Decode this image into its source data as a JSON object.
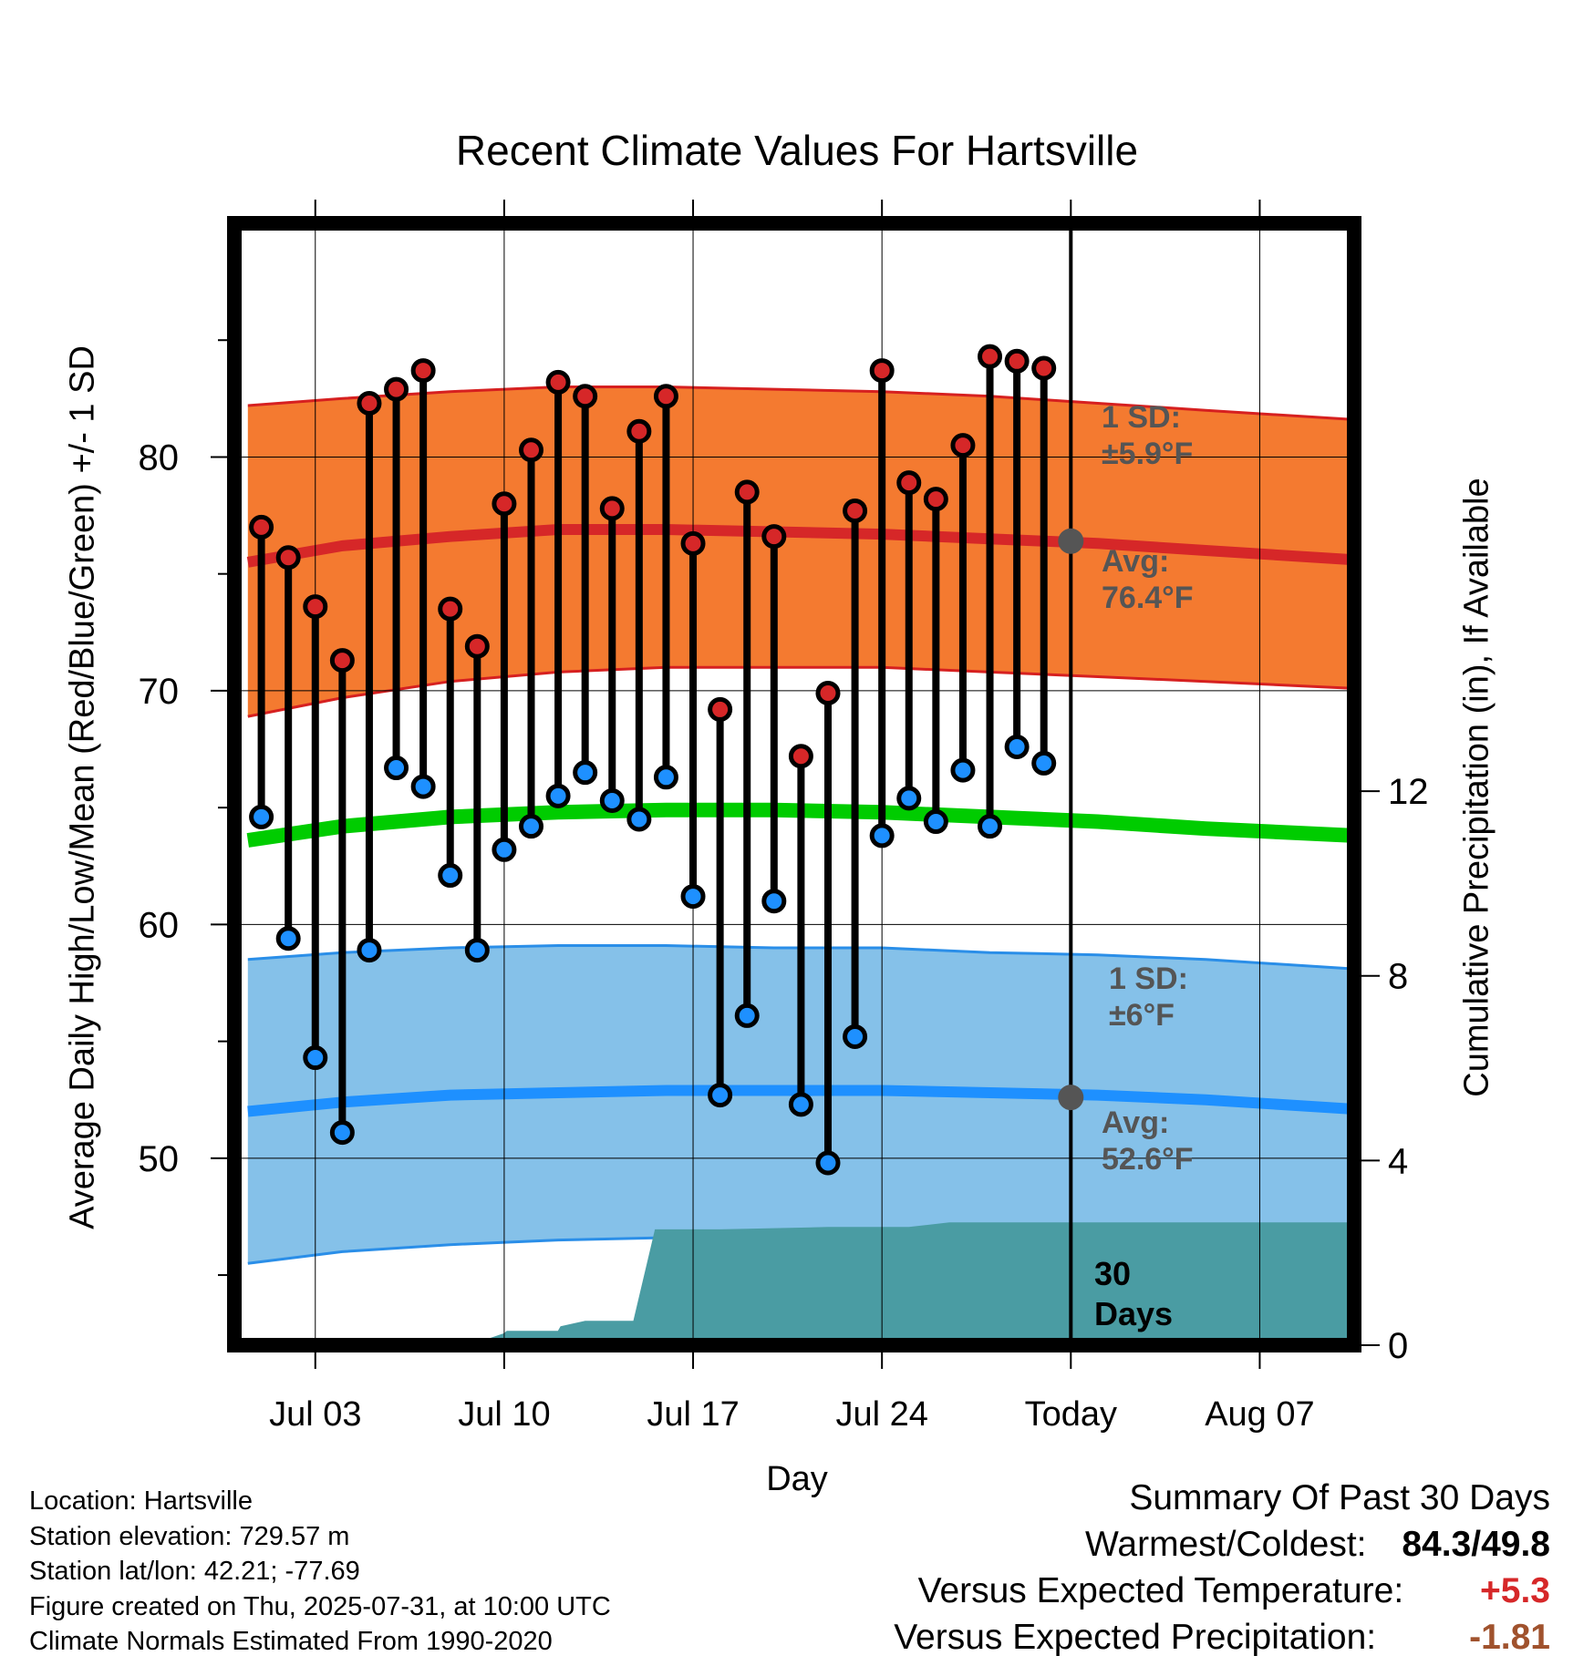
{
  "chart_data": {
    "type": "line",
    "title": "Recent Climate Values For Hartsville",
    "xlabel": "Day",
    "ylabel_left": "Average Daily High/Low/Mean (Red/Blue/Green) +/- 1 SD",
    "ylabel_right": "Cumulative Precipitation (in), If Available",
    "x_tick_labels": [
      "Jul 03",
      "Jul 10",
      "Jul 17",
      "Jul 24",
      "Today",
      "Aug 07"
    ],
    "x_tick_days": [
      3,
      10,
      17,
      24,
      31,
      38
    ],
    "xlim_days": [
      0,
      41.5
    ],
    "ylim_left": [
      42,
      90
    ],
    "ylim_right": [
      0,
      24.3
    ],
    "y_left_ticks": [
      50,
      60,
      70,
      80
    ],
    "y_right_ticks": [
      0,
      4,
      8,
      12
    ],
    "today_day": 31,
    "observed": {
      "days": [
        1,
        2,
        3,
        4,
        5,
        6,
        7,
        8,
        9,
        10,
        11,
        12,
        13,
        14,
        15,
        16,
        17,
        18,
        19,
        20,
        21,
        22,
        23,
        24,
        25,
        26,
        27,
        28,
        29,
        30
      ],
      "highs": [
        77.0,
        75.7,
        73.6,
        71.3,
        82.3,
        82.9,
        83.7,
        73.5,
        71.9,
        78.0,
        80.3,
        83.2,
        82.6,
        77.8,
        81.1,
        82.6,
        76.3,
        69.2,
        78.5,
        76.6,
        67.2,
        69.9,
        77.7,
        83.7,
        78.9,
        78.2,
        80.5,
        84.3,
        84.1,
        83.8
      ],
      "lows": [
        64.6,
        59.4,
        54.3,
        51.1,
        58.9,
        66.7,
        65.9,
        62.1,
        58.9,
        63.2,
        64.2,
        65.5,
        66.5,
        65.3,
        64.5,
        66.3,
        61.2,
        52.7,
        56.1,
        61.0,
        52.3,
        49.8,
        55.2,
        63.8,
        65.4,
        64.4,
        66.6,
        64.2,
        67.6,
        66.9
      ]
    },
    "normals": {
      "days": [
        0.5,
        4,
        8,
        12,
        16,
        20,
        24,
        28,
        32,
        36,
        41.5
      ],
      "high_avg": [
        75.5,
        76.2,
        76.6,
        76.9,
        76.9,
        76.8,
        76.7,
        76.5,
        76.3,
        76.0,
        75.6
      ],
      "high_sd_upper": [
        82.2,
        82.5,
        82.8,
        83.0,
        83.0,
        82.9,
        82.8,
        82.6,
        82.3,
        82.0,
        81.6
      ],
      "high_sd_lower": [
        68.9,
        69.7,
        70.4,
        70.8,
        71.0,
        71.0,
        71.0,
        70.8,
        70.6,
        70.4,
        70.1
      ],
      "low_avg": [
        52.0,
        52.4,
        52.7,
        52.8,
        52.9,
        52.9,
        52.9,
        52.8,
        52.7,
        52.5,
        52.1
      ],
      "low_sd_upper": [
        58.5,
        58.8,
        59.0,
        59.1,
        59.1,
        59.0,
        59.0,
        58.8,
        58.7,
        58.5,
        58.1
      ],
      "low_sd_lower": [
        45.5,
        46.0,
        46.3,
        46.5,
        46.6,
        46.7,
        46.7,
        46.6,
        46.6,
        46.5,
        46.5
      ],
      "mean": [
        63.6,
        64.2,
        64.6,
        64.8,
        64.9,
        64.9,
        64.8,
        64.6,
        64.4,
        64.1,
        63.8
      ]
    },
    "precipitation": {
      "days": [
        0.5,
        7.5,
        9,
        10,
        10.1,
        12,
        12.1,
        13,
        13.1,
        14.8,
        15.6,
        18,
        22,
        25,
        26.5,
        31,
        41.5
      ],
      "cumulative": [
        0.0,
        0.0,
        0.05,
        0.25,
        0.3,
        0.3,
        0.4,
        0.52,
        0.52,
        0.52,
        2.5,
        2.5,
        2.55,
        2.55,
        2.65,
        2.65,
        2.65
      ]
    },
    "annotations": {
      "high_sd_label": "1 SD:",
      "high_sd_value": "±5.9°F",
      "high_avg_label": "Avg:",
      "high_avg_value": "76.4°F",
      "high_today_avg": 76.4,
      "low_sd_label": "1 SD:",
      "low_sd_value": "±6°F",
      "low_avg_label": "Avg:",
      "low_avg_value": "52.6°F",
      "low_today_avg": 52.6,
      "days_label_line1": "30",
      "days_label_line2": "Days"
    },
    "colors": {
      "high_band": "#f47a30",
      "high_band_edge": "#d62020",
      "high_avg_line": "#d62728",
      "low_band": "#85c1e9",
      "low_band_edge": "#2a8ee8",
      "low_avg_line": "#1e90ff",
      "mean_line": "#00cc00",
      "precip_fill": "#4a9ca3",
      "high_marker": "#d62728",
      "low_marker": "#1e90ff",
      "today_dot": "#555555"
    }
  },
  "info": {
    "location": "Location: Hartsville",
    "elevation": "Station elevation: 729.57 m",
    "latlon": "Station lat/lon: 42.21; -77.69",
    "created": "Figure created on Thu, 2025-07-31, at 10:00 UTC",
    "normals": "Climate Normals Estimated From 1990-2020"
  },
  "summary": {
    "heading": "Summary Of Past 30 Days",
    "warmest_label": "Warmest/Coldest:",
    "warmest_value": "84.3",
    "slash": "/",
    "coldest_value": "49.8",
    "temp_label": "Versus Expected Temperature:",
    "temp_value": "+5.3",
    "temp_color": "#d62728",
    "precip_label": "Versus Expected Precipitation:",
    "precip_value": "-1.81",
    "precip_color": "#a0522d"
  }
}
